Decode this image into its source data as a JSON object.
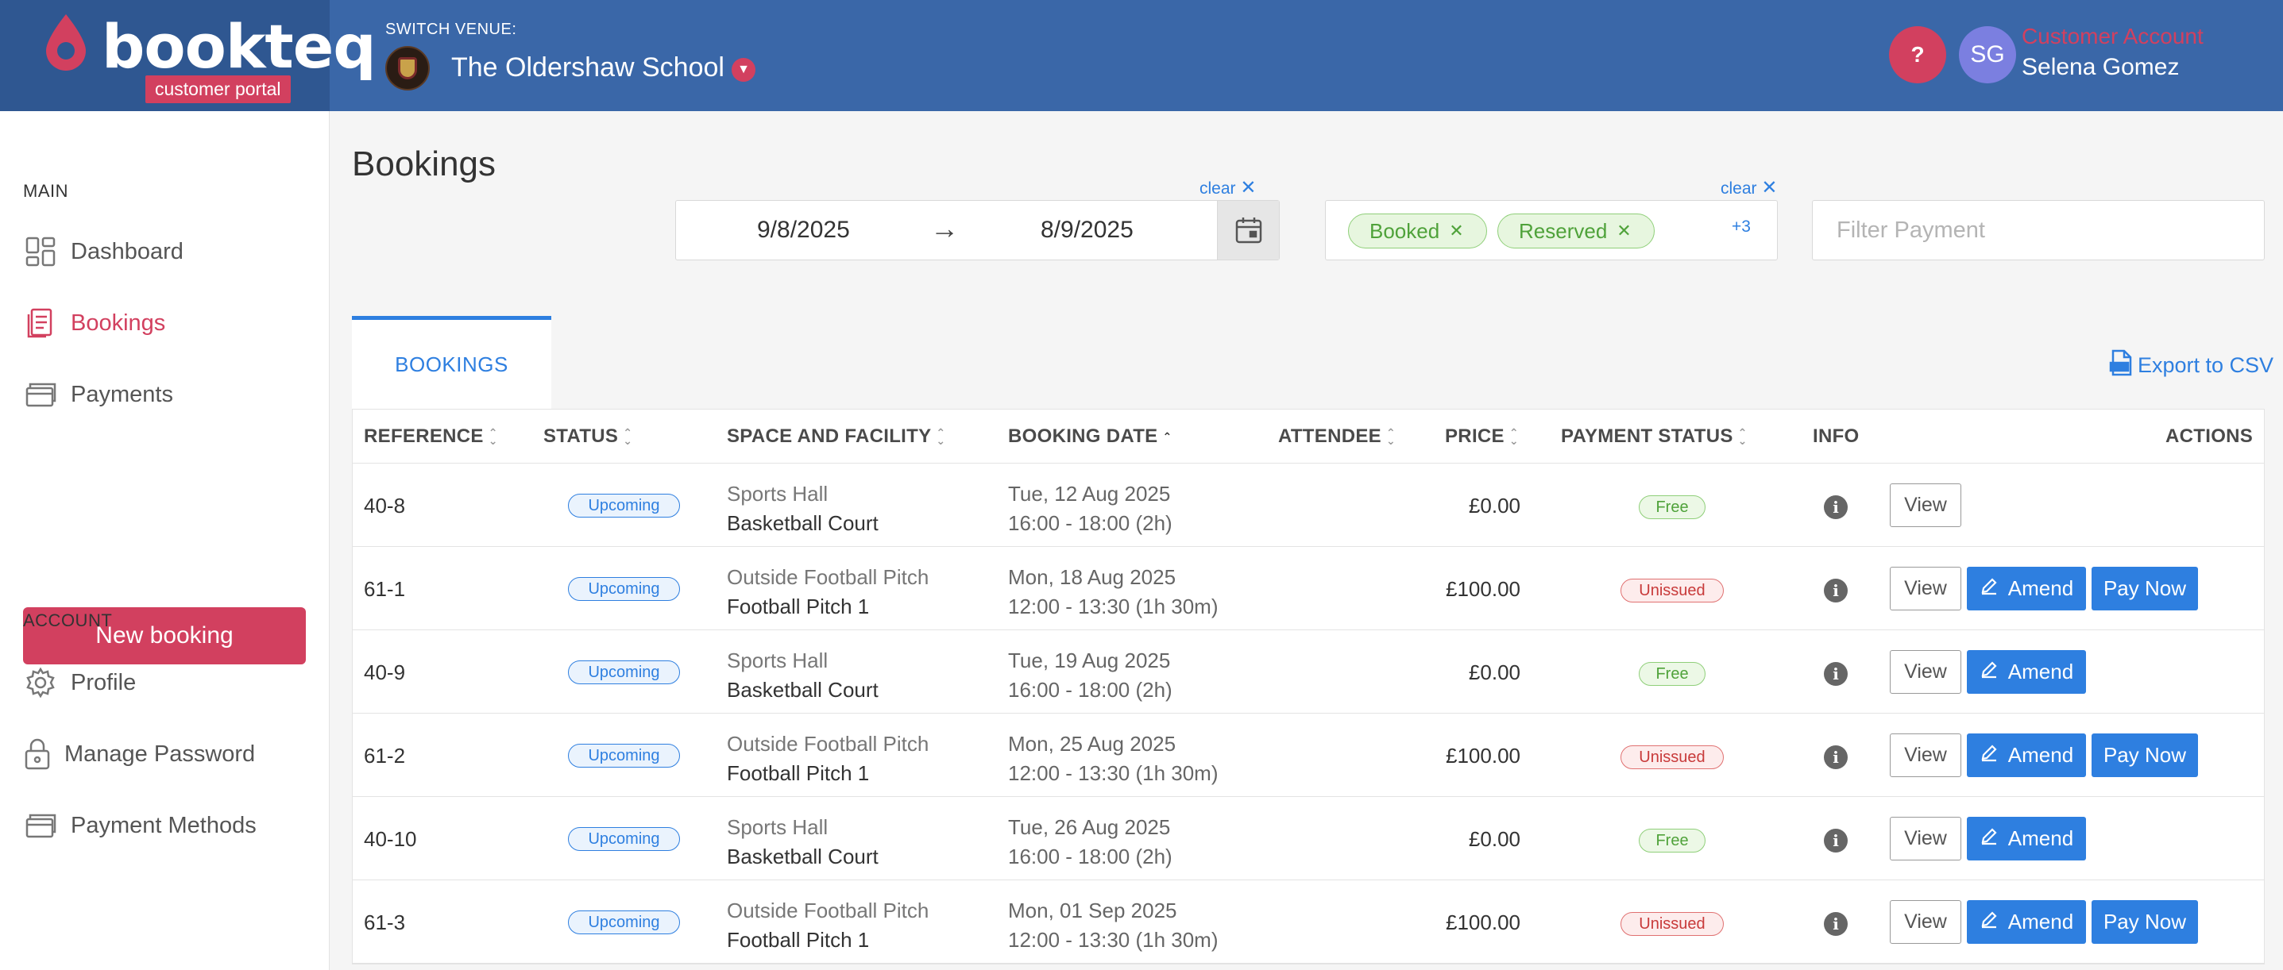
{
  "brand": {
    "name": "bookteq",
    "portal_badge": "customer portal",
    "accent": "#d2405f",
    "header_bg": "#3a67a8",
    "primary": "#2e7fe0"
  },
  "venue": {
    "switch_label": "SWITCH VENUE:",
    "name": "The Oldershaw School"
  },
  "account": {
    "help_label": "?",
    "initials": "SG",
    "type": "Customer Account",
    "name": "Selena Gomez"
  },
  "sidebar": {
    "main_label": "MAIN",
    "main_items": [
      {
        "label": "Dashboard",
        "icon": "dashboard-icon"
      },
      {
        "label": "Bookings",
        "icon": "bookings-icon",
        "active": true
      },
      {
        "label": "Payments",
        "icon": "payments-icon"
      }
    ],
    "new_booking_label": "New booking",
    "account_label": "ACCOUNT",
    "account_items": [
      {
        "label": "Profile",
        "icon": "gear-icon"
      },
      {
        "label": "Manage Password",
        "icon": "lock-icon"
      },
      {
        "label": "Payment Methods",
        "icon": "card-icon"
      }
    ]
  },
  "main": {
    "title": "Bookings",
    "date_filter": {
      "clear_label": "clear",
      "from": "9/8/2025",
      "arrow": "→",
      "to": "8/9/2025"
    },
    "status_filter": {
      "clear_label": "clear",
      "tags": [
        "Booked",
        "Reserved"
      ],
      "more": "+3"
    },
    "payment_filter": {
      "placeholder": "Filter Payment"
    },
    "tab_label": "BOOKINGS",
    "export_label": "Export to CSV"
  },
  "table": {
    "columns": {
      "reference": "REFERENCE",
      "status": "STATUS",
      "space": "SPACE AND FACILITY",
      "booking_date": "BOOKING DATE",
      "attendee": "ATTENDEE",
      "price": "PRICE",
      "payment_status": "PAYMENT STATUS",
      "info": "INFO",
      "actions": "ACTIONS"
    },
    "action_labels": {
      "view": "View",
      "amend": "Amend",
      "pay": "Pay Now"
    },
    "rows": [
      {
        "ref": "40-8",
        "status": "Upcoming",
        "space": "Sports Hall",
        "facility": "Basketball Court",
        "date": "Tue, 12 Aug 2025",
        "time": "16:00 - 18:00 (2h)",
        "price": "£0.00",
        "payment": "Free",
        "amend": false,
        "pay": false
      },
      {
        "ref": "61-1",
        "status": "Upcoming",
        "space": "Outside Football Pitch",
        "facility": "Football Pitch 1",
        "date": "Mon, 18 Aug 2025",
        "time": "12:00 - 13:30 (1h 30m)",
        "price": "£100.00",
        "payment": "Unissued",
        "amend": true,
        "pay": true
      },
      {
        "ref": "40-9",
        "status": "Upcoming",
        "space": "Sports Hall",
        "facility": "Basketball Court",
        "date": "Tue, 19 Aug 2025",
        "time": "16:00 - 18:00 (2h)",
        "price": "£0.00",
        "payment": "Free",
        "amend": true,
        "pay": false
      },
      {
        "ref": "61-2",
        "status": "Upcoming",
        "space": "Outside Football Pitch",
        "facility": "Football Pitch 1",
        "date": "Mon, 25 Aug 2025",
        "time": "12:00 - 13:30 (1h 30m)",
        "price": "£100.00",
        "payment": "Unissued",
        "amend": true,
        "pay": true
      },
      {
        "ref": "40-10",
        "status": "Upcoming",
        "space": "Sports Hall",
        "facility": "Basketball Court",
        "date": "Tue, 26 Aug 2025",
        "time": "16:00 - 18:00 (2h)",
        "price": "£0.00",
        "payment": "Free",
        "amend": true,
        "pay": false
      },
      {
        "ref": "61-3",
        "status": "Upcoming",
        "space": "Outside Football Pitch",
        "facility": "Football Pitch 1",
        "date": "Mon, 01 Sep 2025",
        "time": "12:00 - 13:30 (1h 30m)",
        "price": "£100.00",
        "payment": "Unissued",
        "amend": true,
        "pay": true
      }
    ]
  }
}
